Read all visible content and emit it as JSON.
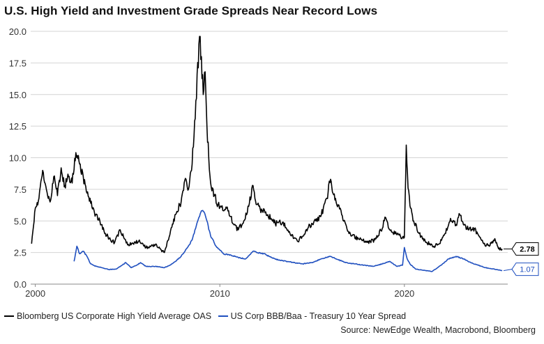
{
  "title": "U.S. High Yield and Investment Grade Spreads Near Record Lows",
  "source": "Source: NewEdge Wealth, Macrobond, Bloomberg",
  "colors": {
    "high_yield": "#000000",
    "investment_grade": "#1f4fbf",
    "grid": "#d4d4d4"
  },
  "chart_data": {
    "type": "line",
    "title": "U.S. High Yield and Investment Grade Spreads Near Record Lows",
    "xlabel": "",
    "ylabel": "",
    "xlim": [
      1999.75,
      2025.6
    ],
    "ylim": [
      0,
      20
    ],
    "grid": true,
    "legend_position": "bottom",
    "x_ticks": [
      {
        "value": 2000,
        "label": "2000"
      },
      {
        "value": 2010,
        "label": "2010"
      },
      {
        "value": 2020,
        "label": "2020"
      }
    ],
    "y_ticks": [
      {
        "value": 0,
        "label": "0.0"
      },
      {
        "value": 2.5,
        "label": "2.5"
      },
      {
        "value": 5,
        "label": "5.0"
      },
      {
        "value": 7.5,
        "label": "7.5"
      },
      {
        "value": 10,
        "label": "10.0"
      },
      {
        "value": 12.5,
        "label": "12.5"
      },
      {
        "value": 15,
        "label": "15.0"
      },
      {
        "value": 17.5,
        "label": "17.5"
      },
      {
        "value": 20,
        "label": "20.0"
      }
    ],
    "series": [
      {
        "name": "Bloomberg US Corporate High Yield Average OAS",
        "color": "#000000",
        "end_label": "2.78",
        "x": [
          1999.8,
          2000.0,
          2000.2,
          2000.4,
          2000.6,
          2000.8,
          2001.0,
          2001.2,
          2001.4,
          2001.6,
          2001.8,
          2002.0,
          2002.2,
          2002.4,
          2002.6,
          2002.8,
          2003.0,
          2003.2,
          2003.5,
          2003.8,
          2004.0,
          2004.3,
          2004.6,
          2005.0,
          2005.3,
          2005.6,
          2006.0,
          2006.5,
          2007.0,
          2007.4,
          2007.6,
          2007.9,
          2008.1,
          2008.3,
          2008.5,
          2008.7,
          2008.9,
          2009.0,
          2009.1,
          2009.2,
          2009.3,
          2009.4,
          2009.5,
          2009.7,
          2009.9,
          2010.2,
          2010.4,
          2010.7,
          2011.0,
          2011.3,
          2011.6,
          2011.8,
          2012.0,
          2012.3,
          2012.6,
          2013.0,
          2013.4,
          2013.8,
          2014.2,
          2014.5,
          2014.8,
          2015.2,
          2015.5,
          2015.8,
          2016.0,
          2016.1,
          2016.3,
          2016.6,
          2017.0,
          2017.5,
          2018.0,
          2018.4,
          2018.8,
          2018.95,
          2019.2,
          2019.6,
          2019.9,
          2020.0,
          2020.1,
          2020.2,
          2020.3,
          2020.5,
          2020.8,
          2021.2,
          2021.6,
          2021.9,
          2022.2,
          2022.5,
          2022.8,
          2023.0,
          2023.2,
          2023.5,
          2023.8,
          2024.0,
          2024.3,
          2024.6,
          2024.9,
          2025.1,
          2025.3
        ],
        "values": [
          3.2,
          6.0,
          6.8,
          9.0,
          7.5,
          6.5,
          8.5,
          7.0,
          9.2,
          7.8,
          8.5,
          8.0,
          10.4,
          9.5,
          8.5,
          7.2,
          6.4,
          5.7,
          5.0,
          4.0,
          3.6,
          3.3,
          4.3,
          3.1,
          3.2,
          3.4,
          2.9,
          3.1,
          2.5,
          4.5,
          5.5,
          6.5,
          8.2,
          7.5,
          9.5,
          14.5,
          19.6,
          18.0,
          15.0,
          16.8,
          12.5,
          10.0,
          8.0,
          7.0,
          6.3,
          5.8,
          6.1,
          4.8,
          4.3,
          5.0,
          6.4,
          7.8,
          6.3,
          5.8,
          5.5,
          4.8,
          4.9,
          4.0,
          3.4,
          3.8,
          4.5,
          5.0,
          5.5,
          6.8,
          8.3,
          7.3,
          6.5,
          5.5,
          4.0,
          3.6,
          3.3,
          3.5,
          4.4,
          5.3,
          4.3,
          3.9,
          3.7,
          3.7,
          11.0,
          7.6,
          6.2,
          5.0,
          4.0,
          3.3,
          3.0,
          3.2,
          4.0,
          5.2,
          4.7,
          5.5,
          4.7,
          4.3,
          4.4,
          3.9,
          3.2,
          3.0,
          3.6,
          2.8,
          2.78
        ]
      },
      {
        "name": "US Corp BBB/Baa - Treasury 10 Year Spread",
        "color": "#1f4fbf",
        "end_label": "1.07",
        "x": [
          2002.1,
          2002.25,
          2002.4,
          2002.6,
          2002.8,
          2003.0,
          2003.3,
          2003.6,
          2004.0,
          2004.4,
          2004.7,
          2004.9,
          2005.2,
          2005.5,
          2005.7,
          2006.0,
          2006.5,
          2007.0,
          2007.3,
          2007.6,
          2007.9,
          2008.2,
          2008.5,
          2008.8,
          2009.0,
          2009.15,
          2009.3,
          2009.5,
          2009.8,
          2010.2,
          2010.6,
          2011.0,
          2011.4,
          2011.8,
          2012.0,
          2012.4,
          2012.8,
          2013.2,
          2013.6,
          2014.0,
          2014.5,
          2015.0,
          2015.5,
          2016.0,
          2016.3,
          2016.8,
          2017.3,
          2017.8,
          2018.3,
          2018.8,
          2019.2,
          2019.6,
          2019.9,
          2020.0,
          2020.15,
          2020.3,
          2020.6,
          2021.0,
          2021.5,
          2022.0,
          2022.4,
          2022.8,
          2023.2,
          2023.6,
          2024.0,
          2024.4,
          2024.8,
          2025.3
        ],
        "values": [
          1.8,
          3.0,
          2.4,
          2.6,
          2.2,
          1.6,
          1.4,
          1.3,
          1.15,
          1.2,
          1.5,
          1.7,
          1.3,
          1.5,
          1.7,
          1.4,
          1.4,
          1.3,
          1.5,
          1.8,
          2.2,
          2.8,
          3.5,
          5.0,
          5.8,
          5.7,
          5.0,
          3.8,
          3.0,
          2.4,
          2.3,
          2.1,
          2.0,
          2.6,
          2.5,
          2.4,
          2.1,
          1.9,
          1.8,
          1.7,
          1.6,
          1.7,
          2.0,
          2.2,
          2.0,
          1.7,
          1.6,
          1.5,
          1.4,
          1.6,
          1.8,
          1.4,
          1.5,
          2.9,
          2.0,
          1.6,
          1.2,
          1.1,
          1.0,
          1.5,
          2.0,
          2.2,
          2.0,
          1.7,
          1.5,
          1.3,
          1.2,
          1.07
        ]
      }
    ]
  }
}
